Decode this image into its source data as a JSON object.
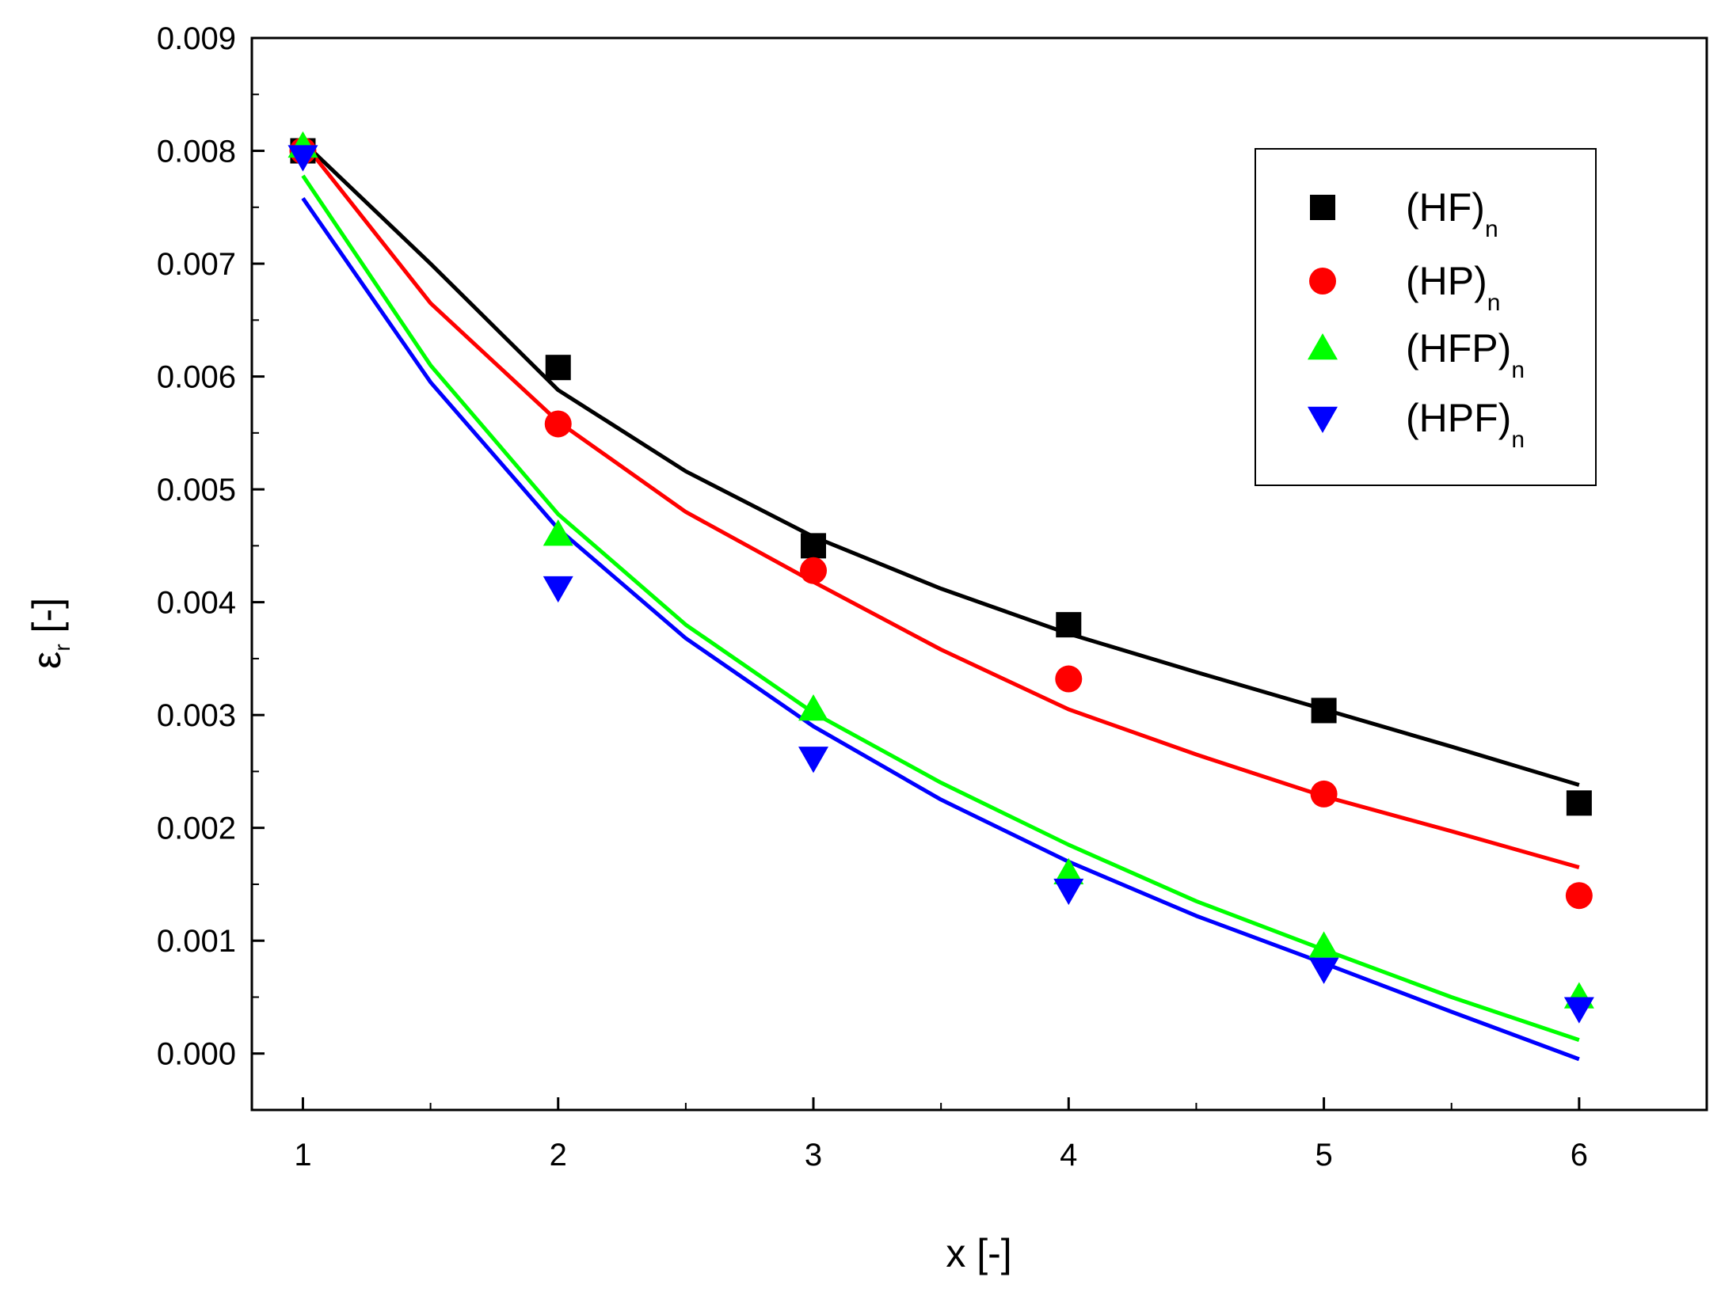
{
  "chart_data": {
    "type": "scatter",
    "title": "",
    "xlabel": "x [-]",
    "ylabel": {
      "main": "ε",
      "sub": "r",
      "suffix": " [-]"
    },
    "xlim": [
      0.8,
      6.5
    ],
    "ylim": [
      -0.0005,
      0.009
    ],
    "x_ticks": [
      1,
      2,
      3,
      4,
      5,
      6
    ],
    "x_minor_ticks": [
      1.5,
      2.5,
      3.5,
      4.5,
      5.5,
      6.5
    ],
    "y_ticks": [
      0.0,
      0.001,
      0.002,
      0.003,
      0.004,
      0.005,
      0.006,
      0.007,
      0.008,
      0.009
    ],
    "x_tick_labels": [
      "1",
      "2",
      "3",
      "4",
      "5",
      "6"
    ],
    "y_tick_labels": [
      "0.000",
      "0.001",
      "0.002",
      "0.003",
      "0.004",
      "0.005",
      "0.006",
      "0.007",
      "0.008",
      "0.009"
    ],
    "grid": false,
    "legend_position": "top-right",
    "series": [
      {
        "name": "(HF)",
        "subscript": "n",
        "marker": "square",
        "color": "#000000",
        "x": [
          1,
          2,
          3,
          4,
          5,
          6
        ],
        "y": [
          0.008,
          0.00608,
          0.0045,
          0.0038,
          0.00304,
          0.00222
        ],
        "fit_x": [
          1,
          1.5,
          2,
          2.5,
          3,
          3.5,
          4,
          4.5,
          5,
          5.5,
          6
        ],
        "fit_y": [
          0.00808,
          0.007,
          0.00588,
          0.00516,
          0.00458,
          0.00412,
          0.00372,
          0.00338,
          0.00305,
          0.00272,
          0.00238
        ]
      },
      {
        "name": "(HP)",
        "subscript": "n",
        "marker": "circle",
        "color": "#ff0000",
        "x": [
          1,
          2,
          3,
          4,
          5,
          6
        ],
        "y": [
          0.008,
          0.00558,
          0.00428,
          0.00332,
          0.0023,
          0.0014
        ],
        "fit_x": [
          1,
          1.5,
          2,
          2.5,
          3,
          3.5,
          4,
          4.5,
          5,
          5.5,
          6
        ],
        "fit_y": [
          0.00808,
          0.00665,
          0.0056,
          0.0048,
          0.00418,
          0.00358,
          0.00305,
          0.00265,
          0.00228,
          0.00197,
          0.00165
        ]
      },
      {
        "name": "(HFP)",
        "subscript": "n",
        "marker": "triangle-up",
        "color": "#00ff00",
        "x": [
          1,
          2,
          3,
          4,
          5,
          6
        ],
        "y": [
          0.00804,
          0.0046,
          0.00305,
          0.0016,
          0.00095,
          0.0005
        ],
        "fit_x": [
          1,
          1.5,
          2,
          2.5,
          3,
          3.5,
          4,
          4.5,
          5,
          5.5,
          6
        ],
        "fit_y": [
          0.00778,
          0.0061,
          0.00478,
          0.0038,
          0.00302,
          0.0024,
          0.00185,
          0.00135,
          0.00092,
          0.0005,
          0.00012
        ]
      },
      {
        "name": "(HPF)",
        "subscript": "n",
        "marker": "triangle-down",
        "color": "#0000ff",
        "x": [
          1,
          2,
          3,
          4,
          5,
          6
        ],
        "y": [
          0.00795,
          0.00413,
          0.00262,
          0.00145,
          0.00075,
          0.0004
        ],
        "fit_x": [
          1,
          1.5,
          2,
          2.5,
          3,
          3.5,
          4,
          4.5,
          5,
          5.5,
          6
        ],
        "fit_y": [
          0.00758,
          0.00595,
          0.00465,
          0.00368,
          0.0029,
          0.00225,
          0.0017,
          0.00122,
          0.0008,
          0.00037,
          -5e-05
        ]
      }
    ]
  }
}
